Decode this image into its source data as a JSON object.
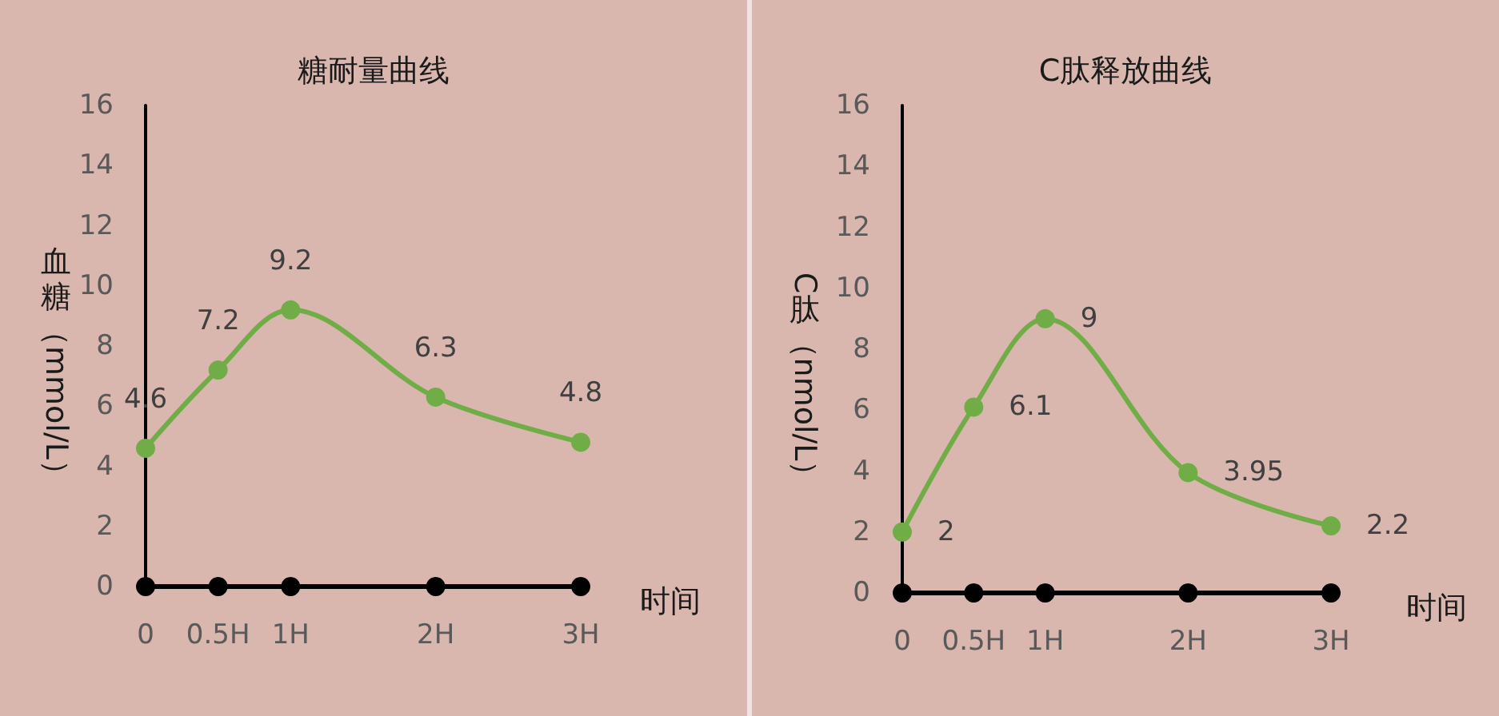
{
  "chart_data": [
    {
      "type": "line",
      "title": "糖耐量曲线",
      "xlabel": "时间",
      "ylabel": "血糖（mmol/L）",
      "x": [
        0,
        0.5,
        1,
        2,
        3
      ],
      "xlim": [
        0,
        3
      ],
      "xticks": [
        0,
        {
          "value": 0.5,
          "label": "0.5H"
        },
        {
          "value": 1,
          "label": "1H"
        },
        {
          "value": 2,
          "label": "2H"
        },
        {
          "value": 3,
          "label": "3H"
        }
      ],
      "ylim": [
        0,
        16
      ],
      "yticks": [
        0,
        2,
        4,
        6,
        8,
        10,
        12,
        14,
        16
      ],
      "marker": "circle",
      "line_style": "solid",
      "series": [
        {
          "color": "#000000",
          "values": [
            0,
            0,
            0,
            0,
            0
          ]
        },
        {
          "color": "#70ad47",
          "values": [
            4.6,
            7.2,
            9.2,
            6.3,
            4.8
          ],
          "value_labels": [
            "4.6",
            "7.2",
            "9.2",
            "6.3",
            "4.8"
          ]
        }
      ]
    },
    {
      "type": "line",
      "title": "C肽释放曲线",
      "xlabel": "时间",
      "ylabel": "C肽（nmol/L）",
      "x": [
        0,
        0.5,
        1,
        2,
        3
      ],
      "xlim": [
        0,
        3
      ],
      "xticks": [
        0,
        {
          "value": 0.5,
          "label": "0.5H"
        },
        {
          "value": 1,
          "label": "1H"
        },
        {
          "value": 2,
          "label": "2H"
        },
        {
          "value": 3,
          "label": "3H"
        }
      ],
      "ylim": [
        0,
        16
      ],
      "yticks": [
        0,
        2,
        4,
        6,
        8,
        10,
        12,
        14,
        16
      ],
      "marker": "circle",
      "line_style": "solid",
      "series": [
        {
          "color": "#000000",
          "values": [
            0,
            0,
            0,
            0,
            0
          ]
        },
        {
          "color": "#70ad47",
          "values": [
            2,
            6.1,
            9,
            3.95,
            2.2
          ],
          "value_labels": [
            "2",
            "6.1",
            "9",
            "3.95",
            "2.2"
          ]
        }
      ]
    }
  ]
}
